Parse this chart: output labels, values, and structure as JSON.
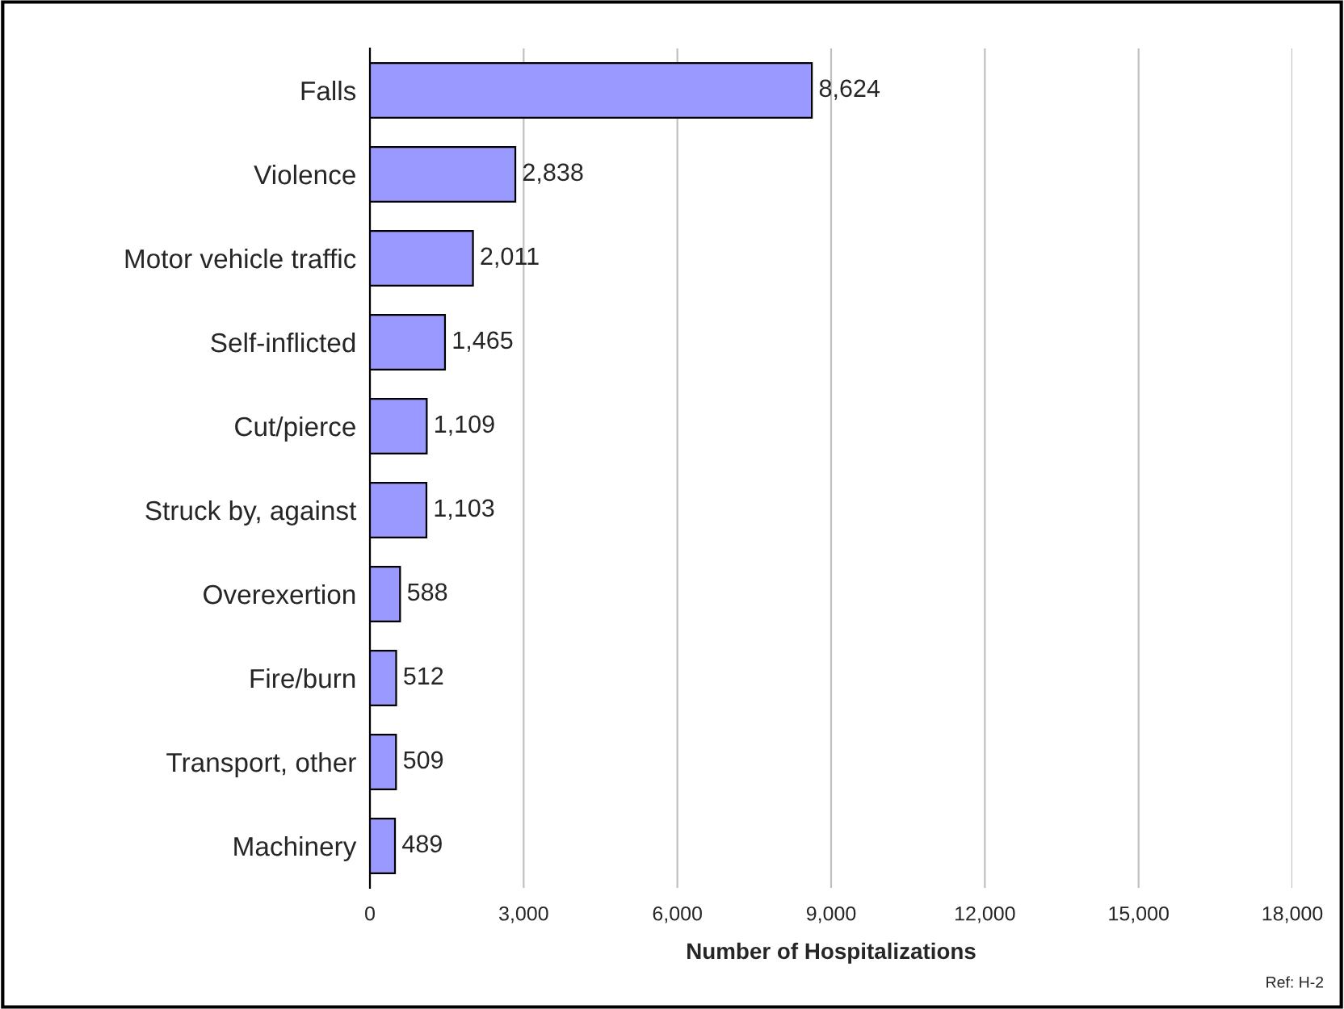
{
  "chart_data": {
    "type": "bar",
    "orientation": "horizontal",
    "categories": [
      "Falls",
      "Violence",
      "Motor vehicle traffic",
      "Self-inflicted",
      "Cut/pierce",
      "Struck by, against",
      "Overexertion",
      "Fire/burn",
      "Transport, other",
      "Machinery"
    ],
    "values": [
      8624,
      2838,
      2011,
      1465,
      1109,
      1103,
      588,
      512,
      509,
      489
    ],
    "color": "#9999ff",
    "xlabel": "Number of Hospitalizations",
    "xlim": [
      0,
      18000
    ],
    "xticks": [
      {
        "value": 0,
        "label": "0"
      },
      {
        "value": 3000,
        "label": "3,000"
      },
      {
        "value": 6000,
        "label": "6,000"
      },
      {
        "value": 9000,
        "label": "9,000"
      },
      {
        "value": 12000,
        "label": "12,000"
      },
      {
        "value": 15000,
        "label": "15,000"
      },
      {
        "value": 18000,
        "label": "18,000"
      }
    ],
    "grid": "x",
    "value_labels": [
      "8,624",
      "2,838",
      "2,011",
      "1,465",
      "1,109",
      "1,103",
      "588",
      "512",
      "509",
      "489"
    ],
    "annotations": [
      "Ref: H-2"
    ]
  }
}
